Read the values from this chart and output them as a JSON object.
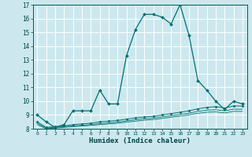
{
  "title": "",
  "xlabel": "Humidex (Indice chaleur)",
  "bg_color": "#cce8ee",
  "grid_color": "#ffffff",
  "line_color": "#007070",
  "xlim": [
    -0.5,
    23.5
  ],
  "ylim": [
    8,
    17
  ],
  "xticks": [
    0,
    1,
    2,
    3,
    4,
    5,
    6,
    7,
    8,
    9,
    10,
    11,
    12,
    13,
    14,
    15,
    16,
    17,
    18,
    19,
    20,
    21,
    22,
    23
  ],
  "yticks": [
    8,
    9,
    10,
    11,
    12,
    13,
    14,
    15,
    16,
    17
  ],
  "line1_x": [
    0,
    1,
    2,
    3,
    4,
    5,
    6,
    7,
    8,
    9,
    10,
    11,
    12,
    13,
    14,
    15,
    16,
    17,
    18,
    19,
    20,
    21,
    22,
    23
  ],
  "line1_y": [
    9.0,
    8.5,
    8.1,
    8.3,
    9.3,
    9.3,
    9.3,
    10.8,
    9.8,
    9.8,
    13.3,
    15.2,
    16.3,
    16.3,
    16.1,
    15.6,
    17.0,
    14.8,
    11.5,
    10.8,
    10.0,
    9.4,
    10.0,
    9.8
  ],
  "line2_x": [
    0,
    1,
    2,
    3,
    4,
    5,
    6,
    7,
    8,
    9,
    10,
    11,
    12,
    13,
    14,
    15,
    16,
    17,
    18,
    19,
    20,
    21,
    22,
    23
  ],
  "line2_y": [
    8.5,
    8.1,
    8.15,
    8.2,
    8.3,
    8.35,
    8.4,
    8.5,
    8.55,
    8.6,
    8.7,
    8.78,
    8.85,
    8.9,
    9.0,
    9.1,
    9.2,
    9.3,
    9.45,
    9.55,
    9.6,
    9.5,
    9.65,
    9.65
  ],
  "line3_x": [
    0,
    1,
    2,
    3,
    4,
    5,
    6,
    7,
    8,
    9,
    10,
    11,
    12,
    13,
    14,
    15,
    16,
    17,
    18,
    19,
    20,
    21,
    22,
    23
  ],
  "line3_y": [
    8.4,
    8.05,
    8.1,
    8.15,
    8.2,
    8.25,
    8.3,
    8.38,
    8.43,
    8.48,
    8.57,
    8.65,
    8.72,
    8.77,
    8.86,
    8.95,
    9.04,
    9.13,
    9.26,
    9.35,
    9.38,
    9.3,
    9.42,
    9.42
  ],
  "line4_x": [
    0,
    1,
    2,
    3,
    4,
    5,
    6,
    7,
    8,
    9,
    10,
    11,
    12,
    13,
    14,
    15,
    16,
    17,
    18,
    19,
    20,
    21,
    22,
    23
  ],
  "line4_y": [
    8.3,
    8.0,
    8.05,
    8.1,
    8.15,
    8.2,
    8.24,
    8.3,
    8.35,
    8.4,
    8.48,
    8.55,
    8.62,
    8.67,
    8.75,
    8.84,
    8.92,
    9.01,
    9.12,
    9.2,
    9.22,
    9.15,
    9.26,
    9.26
  ]
}
